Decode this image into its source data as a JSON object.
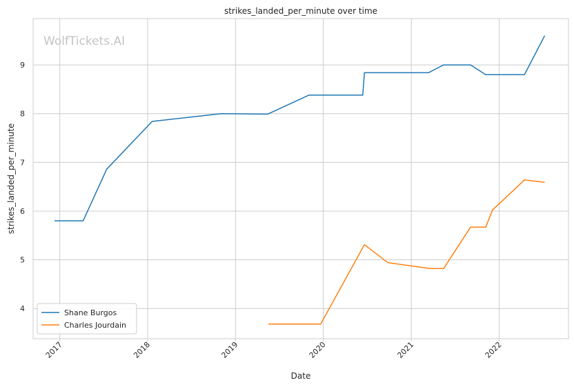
{
  "chart_data": {
    "type": "line",
    "title": "strikes_landed_per_minute over time",
    "xlabel": "Date",
    "ylabel": "strikes_landed_per_minute",
    "watermark": "WolfTickets.AI",
    "grid": true,
    "legend_position": "lower-left",
    "xlim": [
      "2016-09-12",
      "2022-10-16"
    ],
    "ylim": [
      3.38,
      9.95
    ],
    "x_ticks": [
      "2017",
      "2018",
      "2019",
      "2020",
      "2021",
      "2022"
    ],
    "y_ticks": [
      4,
      5,
      6,
      7,
      8,
      9
    ],
    "series": [
      {
        "name": "Shane Burgos",
        "color": "#1f77b4",
        "points": [
          [
            "2016-12-10",
            5.8
          ],
          [
            "2017-04-08",
            5.8
          ],
          [
            "2017-07-15",
            6.86
          ],
          [
            "2018-01-20",
            7.84
          ],
          [
            "2018-11-03",
            8.0
          ],
          [
            "2019-05-15",
            7.99
          ],
          [
            "2019-11-02",
            8.38
          ],
          [
            "2020-06-13",
            8.38
          ],
          [
            "2020-06-20",
            8.84
          ],
          [
            "2021-03-13",
            8.84
          ],
          [
            "2021-05-15",
            9.0
          ],
          [
            "2021-09-04",
            9.0
          ],
          [
            "2021-11-06",
            8.8
          ],
          [
            "2022-04-16",
            8.8
          ],
          [
            "2022-07-09",
            9.6
          ]
        ]
      },
      {
        "name": "Charles Jourdain",
        "color": "#ff7f0e",
        "points": [
          [
            "2019-05-18",
            3.68
          ],
          [
            "2019-12-21",
            3.68
          ],
          [
            "2020-06-20",
            5.31
          ],
          [
            "2020-09-26",
            4.94
          ],
          [
            "2021-03-20",
            4.82
          ],
          [
            "2021-05-15",
            4.82
          ],
          [
            "2021-09-04",
            5.67
          ],
          [
            "2021-11-06",
            5.67
          ],
          [
            "2021-12-04",
            6.02
          ],
          [
            "2022-04-16",
            6.64
          ],
          [
            "2022-07-09",
            6.59
          ]
        ]
      }
    ]
  }
}
